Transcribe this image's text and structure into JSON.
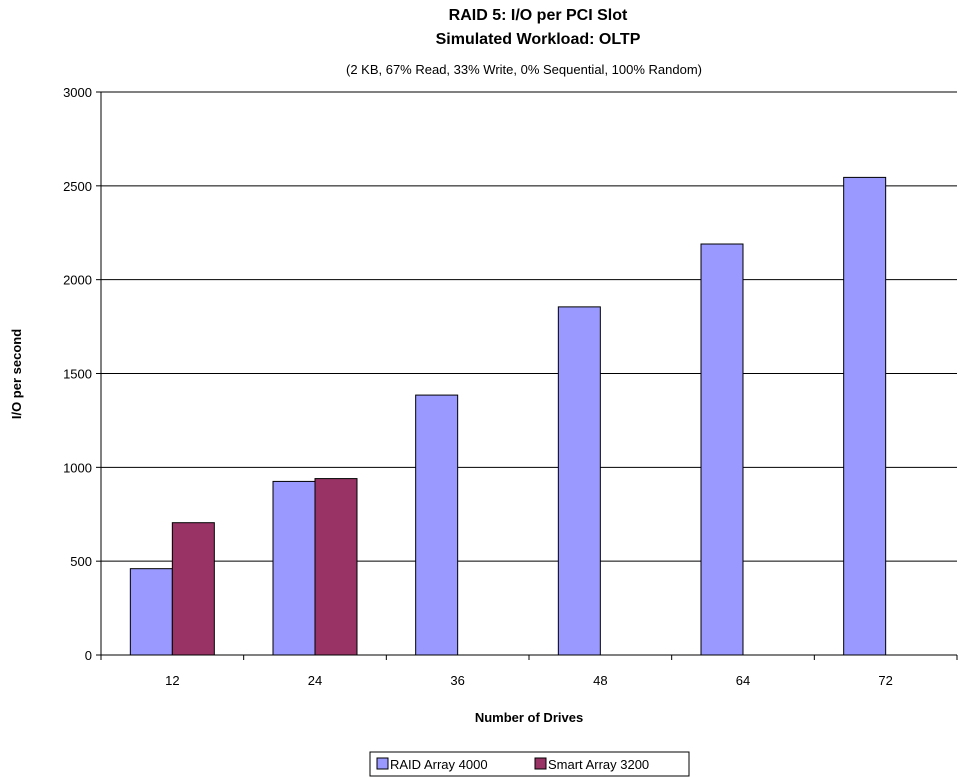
{
  "chart_data": {
    "type": "bar",
    "title": "RAID 5:  I/O per PCI Slot",
    "title2": "Simulated Workload:  OLTP",
    "subtitle": "(2 KB, 67% Read, 33% Write, 0% Sequential, 100% Random)",
    "xlabel": "Number of Drives",
    "ylabel": "I/O per second",
    "categories": [
      "12",
      "24",
      "36",
      "48",
      "64",
      "72"
    ],
    "ylim": [
      0,
      3000
    ],
    "yticks": [
      "0",
      "500",
      "1000",
      "1500",
      "2000",
      "2500",
      "3000"
    ],
    "grid": true,
    "legend_position": "bottom",
    "series": [
      {
        "name": "RAID Array 4000",
        "color": "#9999ff",
        "values": [
          460,
          925,
          1385,
          1855,
          2190,
          2545
        ]
      },
      {
        "name": "Smart Array 3200",
        "color": "#993366",
        "values": [
          705,
          940,
          null,
          null,
          null,
          null
        ]
      }
    ]
  }
}
